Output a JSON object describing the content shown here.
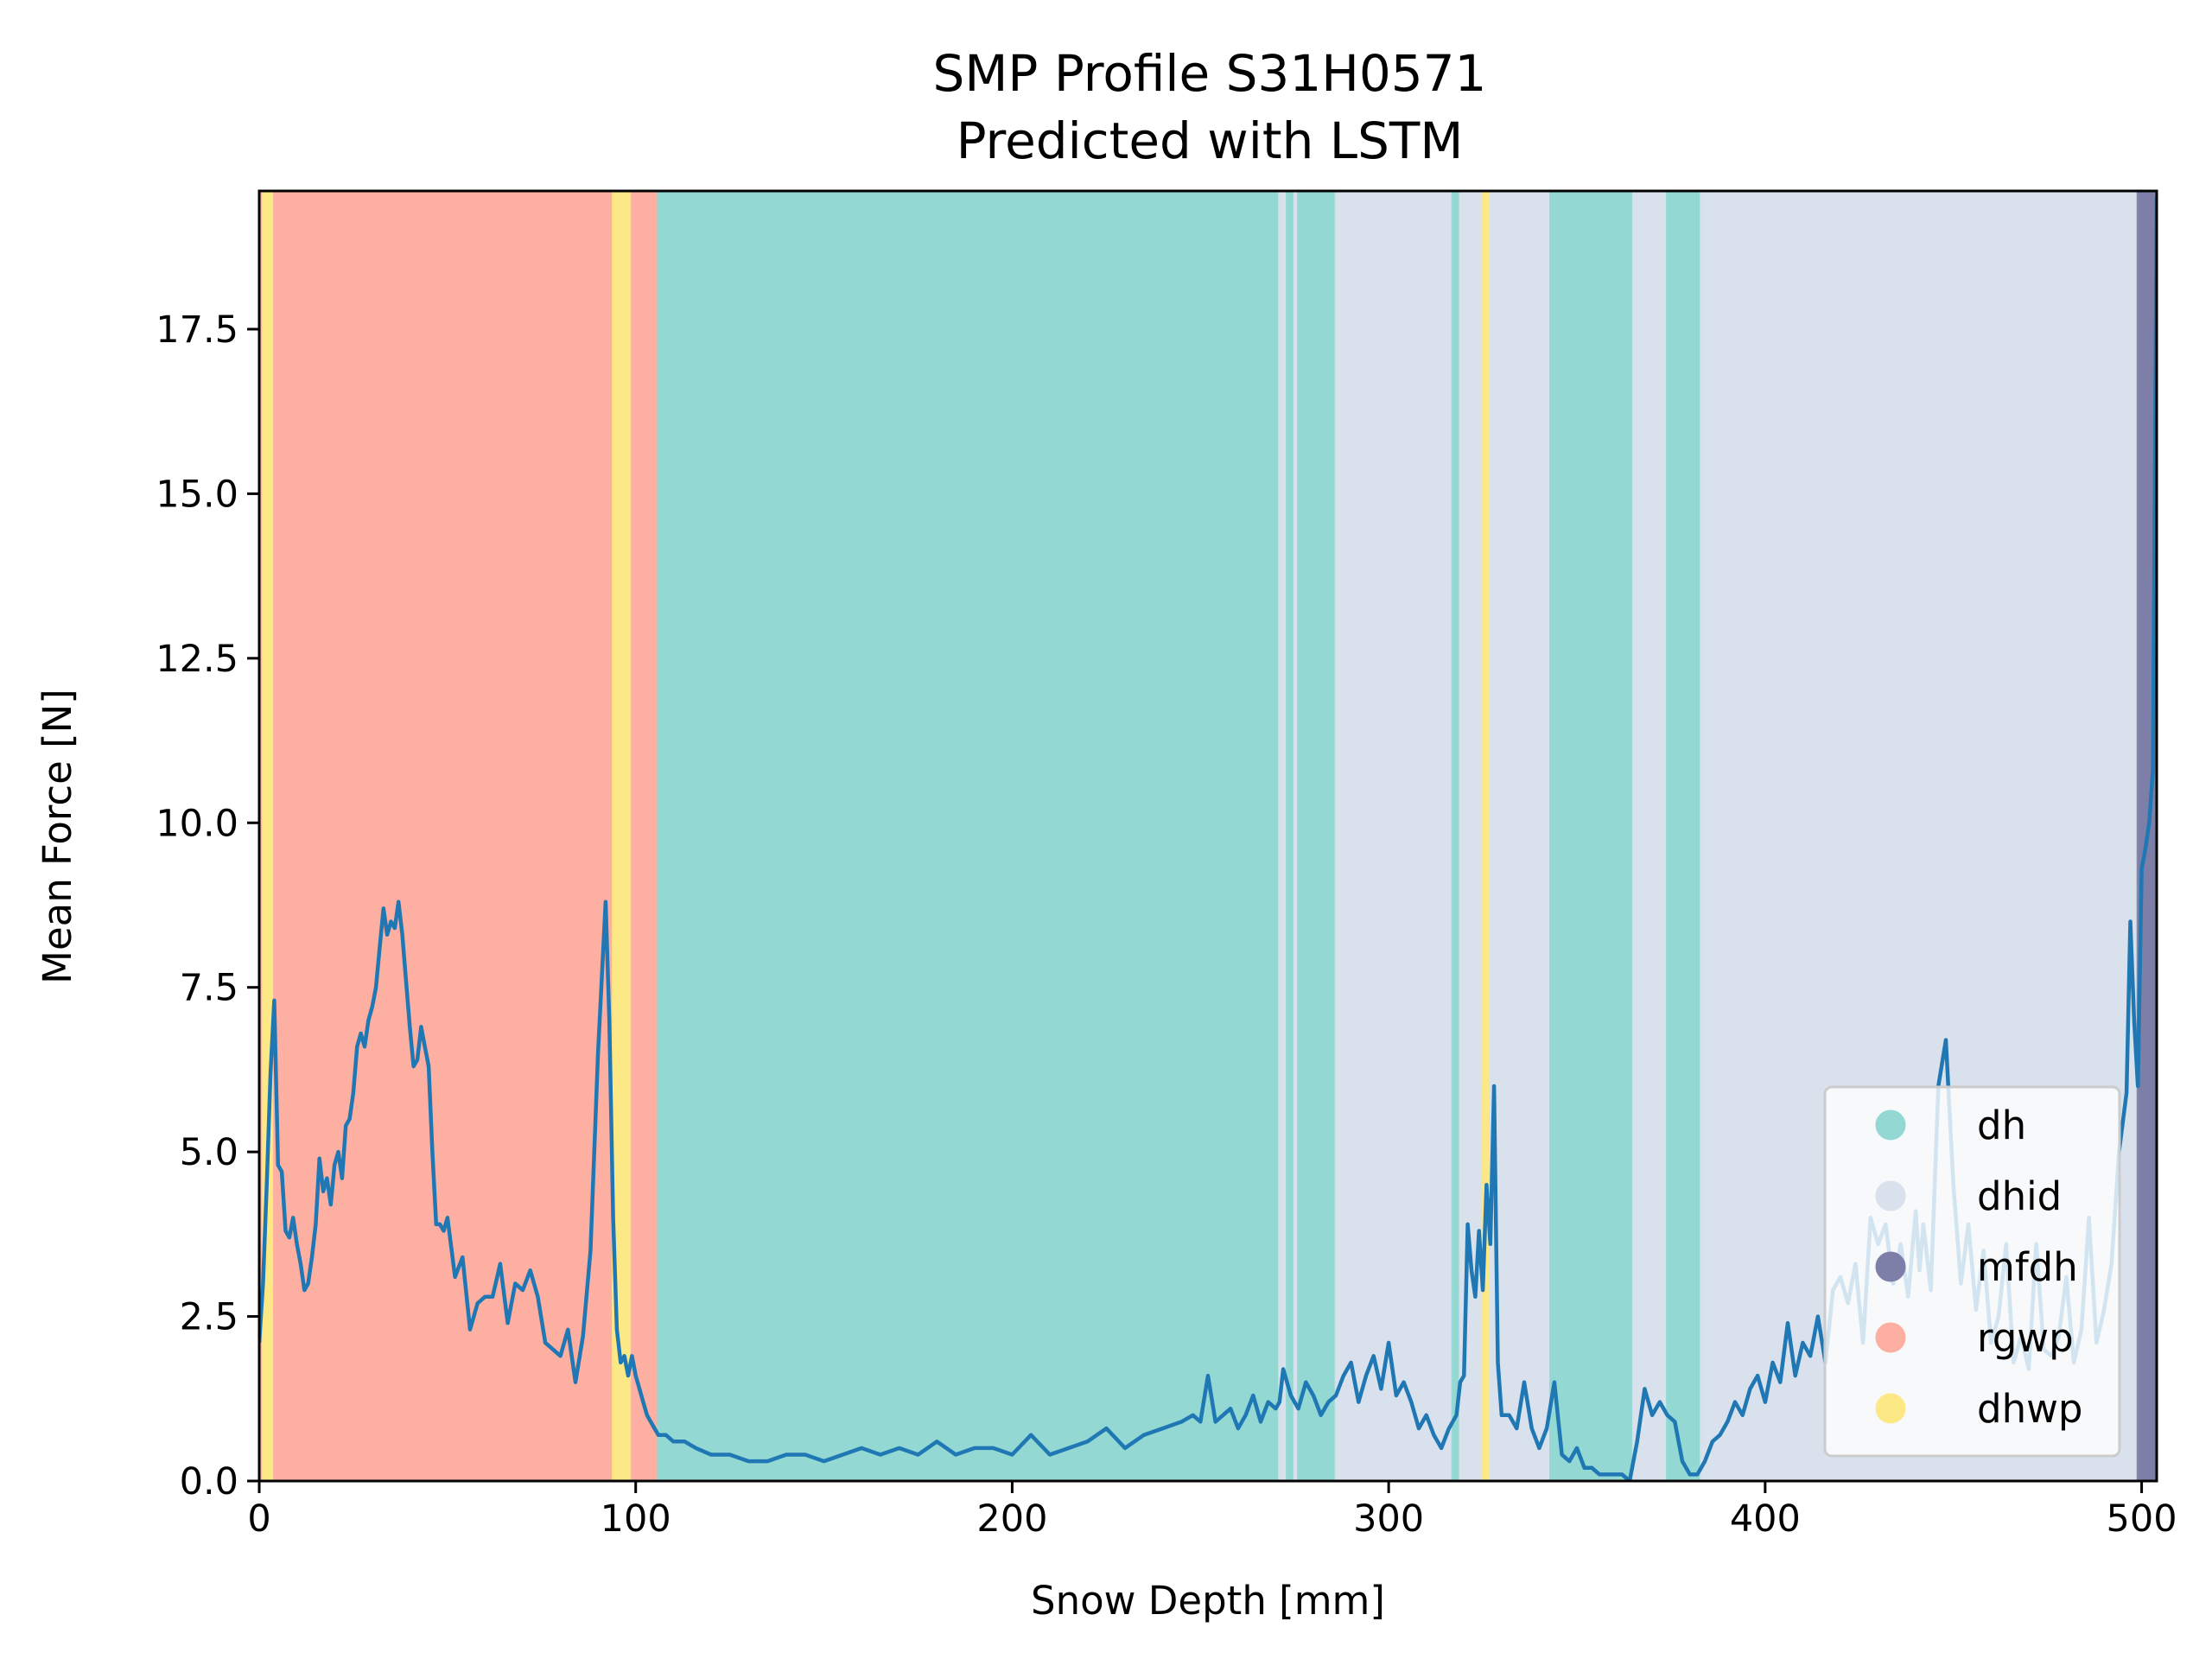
{
  "chart_data": {
    "type": "line",
    "title": [
      "SMP Profile S31H0571",
      "Predicted with LSTM"
    ],
    "xlabel": "Snow Depth [mm]",
    "ylabel": "Mean Force [N]",
    "xlim": [
      0,
      504
    ],
    "ylim": [
      0,
      19.6
    ],
    "xticks": [
      0,
      100,
      200,
      300,
      400,
      500
    ],
    "xtick_labels": [
      "0",
      "100",
      "200",
      "300",
      "400",
      "500"
    ],
    "yticks": [
      0,
      2.5,
      5,
      7.5,
      10,
      12.5,
      15,
      17.5
    ],
    "ytick_labels": [
      "0.0",
      "2.5",
      "5.0",
      "7.5",
      "10.0",
      "12.5",
      "15.0",
      "17.5"
    ],
    "grid": false,
    "legend_position": "lower-right",
    "classes": [
      {
        "name": "dh",
        "color": "#93d8d3"
      },
      {
        "name": "dhid",
        "color": "#d8e1ec"
      },
      {
        "name": "mfdh",
        "color": "#7d7fa8"
      },
      {
        "name": "rgwp",
        "color": "#fdb0a2"
      },
      {
        "name": "dhwp",
        "color": "#fde886"
      }
    ],
    "segments": [
      {
        "start": 0,
        "end": 1,
        "class": "rgwp"
      },
      {
        "start": 1,
        "end": 4,
        "class": "dhwp"
      },
      {
        "start": 4,
        "end": 94,
        "class": "rgwp"
      },
      {
        "start": 94,
        "end": 99,
        "class": "dhwp"
      },
      {
        "start": 99,
        "end": 106,
        "class": "rgwp"
      },
      {
        "start": 106,
        "end": 271,
        "class": "dh"
      },
      {
        "start": 271,
        "end": 273,
        "class": "dhid"
      },
      {
        "start": 273,
        "end": 275,
        "class": "dh"
      },
      {
        "start": 275,
        "end": 276,
        "class": "dhid"
      },
      {
        "start": 276,
        "end": 286,
        "class": "dh"
      },
      {
        "start": 286,
        "end": 317,
        "class": "dhid"
      },
      {
        "start": 317,
        "end": 319,
        "class": "dh"
      },
      {
        "start": 319,
        "end": 325,
        "class": "dhid"
      },
      {
        "start": 325,
        "end": 327,
        "class": "dhwp"
      },
      {
        "start": 327,
        "end": 343,
        "class": "dhid"
      },
      {
        "start": 343,
        "end": 365,
        "class": "dh"
      },
      {
        "start": 365,
        "end": 374,
        "class": "dhid"
      },
      {
        "start": 374,
        "end": 383,
        "class": "dh"
      },
      {
        "start": 383,
        "end": 499,
        "class": "dhid"
      },
      {
        "start": 499,
        "end": 504,
        "class": "mfdh"
      }
    ],
    "series": [
      {
        "color": "#1f77b4",
        "x": [
          0,
          1,
          2,
          3,
          4,
          5,
          6,
          7,
          8,
          9,
          10,
          11,
          12,
          13,
          14,
          15,
          16,
          17,
          18,
          19,
          20,
          21,
          22,
          23,
          24,
          25,
          26,
          27,
          28,
          29,
          30,
          31,
          32,
          33,
          34,
          35,
          36,
          37,
          38,
          39,
          40,
          41,
          42,
          43,
          44,
          45,
          46,
          47,
          48,
          49,
          50,
          52,
          54,
          56,
          58,
          60,
          62,
          64,
          66,
          68,
          70,
          72,
          74,
          76,
          78,
          80,
          82,
          84,
          86,
          88,
          90,
          92,
          93,
          94,
          95,
          96,
          97,
          98,
          99,
          100,
          101,
          102,
          103,
          104,
          105,
          106,
          108,
          110,
          113,
          116,
          120,
          125,
          130,
          135,
          140,
          145,
          150,
          155,
          160,
          165,
          170,
          175,
          180,
          185,
          190,
          195,
          200,
          205,
          210,
          215,
          220,
          225,
          230,
          235,
          240,
          245,
          248,
          250,
          252,
          254,
          256,
          258,
          260,
          262,
          264,
          266,
          268,
          270,
          271,
          272,
          274,
          276,
          278,
          280,
          282,
          284,
          286,
          288,
          290,
          292,
          294,
          296,
          298,
          300,
          302,
          304,
          306,
          308,
          310,
          312,
          314,
          316,
          318,
          319,
          320,
          321,
          322,
          323,
          324,
          325,
          326,
          327,
          328,
          329,
          330,
          332,
          334,
          336,
          338,
          340,
          342,
          344,
          346,
          348,
          350,
          352,
          354,
          356,
          358,
          360,
          362,
          364,
          366,
          368,
          370,
          372,
          374,
          376,
          378,
          380,
          382,
          384,
          386,
          388,
          390,
          392,
          394,
          396,
          398,
          400,
          402,
          404,
          406,
          408,
          410,
          412,
          414,
          416,
          418,
          420,
          422,
          424,
          426,
          428,
          430,
          432,
          434,
          436,
          438,
          440,
          441,
          442,
          444,
          446,
          448,
          450,
          452,
          454,
          456,
          458,
          460,
          462,
          464,
          466,
          468,
          470,
          472,
          474,
          476,
          478,
          480,
          482,
          484,
          486,
          488,
          490,
          492,
          494,
          496,
          497,
          498,
          499,
          500,
          501,
          502,
          503,
          504
        ],
        "y": [
          2.1,
          3.0,
          4.5,
          6.2,
          7.3,
          4.8,
          4.7,
          3.8,
          3.7,
          4.0,
          3.6,
          3.3,
          2.9,
          3.0,
          3.4,
          3.9,
          4.9,
          4.4,
          4.6,
          4.2,
          4.8,
          5.0,
          4.6,
          5.4,
          5.5,
          5.9,
          6.6,
          6.8,
          6.6,
          7.0,
          7.2,
          7.5,
          8.1,
          8.7,
          8.3,
          8.5,
          8.4,
          8.8,
          8.3,
          7.6,
          6.9,
          6.3,
          6.4,
          6.9,
          6.6,
          6.3,
          5.0,
          3.9,
          3.9,
          3.8,
          4.0,
          3.1,
          3.4,
          2.3,
          2.7,
          2.8,
          2.8,
          3.3,
          2.4,
          3.0,
          2.9,
          3.2,
          2.8,
          2.1,
          2.0,
          1.9,
          2.3,
          1.5,
          2.2,
          3.5,
          6.5,
          8.8,
          7.0,
          4.0,
          2.3,
          1.8,
          1.9,
          1.6,
          1.9,
          1.6,
          1.4,
          1.2,
          1.0,
          0.9,
          0.8,
          0.7,
          0.7,
          0.6,
          0.6,
          0.5,
          0.4,
          0.4,
          0.3,
          0.3,
          0.4,
          0.4,
          0.3,
          0.4,
          0.5,
          0.4,
          0.5,
          0.4,
          0.6,
          0.4,
          0.5,
          0.5,
          0.4,
          0.7,
          0.4,
          0.5,
          0.6,
          0.8,
          0.5,
          0.7,
          0.8,
          0.9,
          1.0,
          0.9,
          1.6,
          0.9,
          1.0,
          1.1,
          0.8,
          1.0,
          1.3,
          0.9,
          1.2,
          1.1,
          1.2,
          1.7,
          1.3,
          1.1,
          1.5,
          1.3,
          1.0,
          1.2,
          1.3,
          1.6,
          1.8,
          1.2,
          1.6,
          1.9,
          1.4,
          2.1,
          1.3,
          1.5,
          1.2,
          0.8,
          1.0,
          0.7,
          0.5,
          0.8,
          1.0,
          1.5,
          1.6,
          3.9,
          3.2,
          2.8,
          3.8,
          2.9,
          4.5,
          3.6,
          6.0,
          1.8,
          1.0,
          1.0,
          0.8,
          1.5,
          0.8,
          0.5,
          0.8,
          1.5,
          0.4,
          0.3,
          0.5,
          0.2,
          0.2,
          0.1,
          0.1,
          0.1,
          0.1,
          0.0,
          0.6,
          1.4,
          1.0,
          1.2,
          1.0,
          0.9,
          0.3,
          0.1,
          0.1,
          0.3,
          0.6,
          0.7,
          0.9,
          1.2,
          1.0,
          1.4,
          1.6,
          1.2,
          1.8,
          1.5,
          2.4,
          1.6,
          2.1,
          1.9,
          2.5,
          1.8,
          2.9,
          3.1,
          2.7,
          3.3,
          2.1,
          4.0,
          3.6,
          3.9,
          3.0,
          3.6,
          2.8,
          4.1,
          3.2,
          3.9,
          2.9,
          6.0,
          6.7,
          4.5,
          3.0,
          3.9,
          2.6,
          3.5,
          2.1,
          2.5,
          3.6,
          1.8,
          2.2,
          1.7,
          3.6,
          2.0,
          1.9,
          2.2,
          3.1,
          1.8,
          2.3,
          4.0,
          2.1,
          2.6,
          3.3,
          5.0,
          5.9,
          8.5,
          7.0,
          6.0,
          9.3,
          9.6,
          10.0,
          10.8,
          19.5
        ]
      }
    ]
  }
}
